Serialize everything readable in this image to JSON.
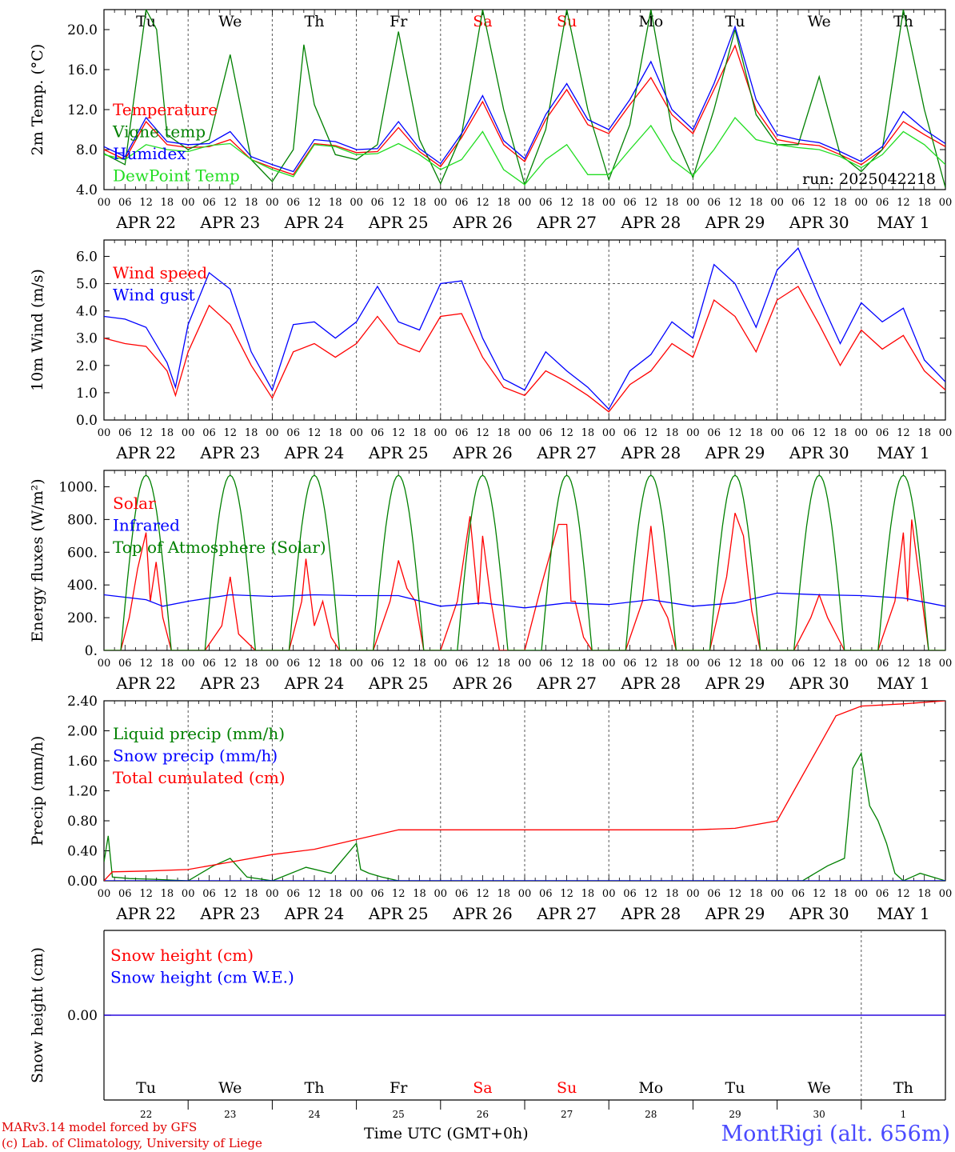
{
  "days": [
    {
      "abbr": "Tu",
      "date": "APR 22",
      "num": "22",
      "weekend": false
    },
    {
      "abbr": "We",
      "date": "APR 23",
      "num": "23",
      "weekend": false
    },
    {
      "abbr": "Th",
      "date": "APR 24",
      "num": "24",
      "weekend": false
    },
    {
      "abbr": "Fr",
      "date": "APR 25",
      "num": "25",
      "weekend": false
    },
    {
      "abbr": "Sa",
      "date": "APR 26",
      "num": "26",
      "weekend": true
    },
    {
      "abbr": "Su",
      "date": "APR 27",
      "num": "27",
      "weekend": true
    },
    {
      "abbr": "Mo",
      "date": "APR 28",
      "num": "28",
      "weekend": false
    },
    {
      "abbr": "Tu",
      "date": "APR 29",
      "num": "29",
      "weekend": false
    },
    {
      "abbr": "We",
      "date": "APR 30",
      "num": "30",
      "weekend": false
    },
    {
      "abbr": "Th",
      "date": "MAY  1",
      "num": "1",
      "weekend": false
    }
  ],
  "hour_ticks": [
    "00",
    "06",
    "12",
    "18"
  ],
  "colors": {
    "red": "#ff0000",
    "green": "#008000",
    "blue": "#0000ff",
    "lightgreen": "#22dd22",
    "weekend": "#ff0000"
  },
  "run_label": "run: 2025042218",
  "footer": {
    "model": "MARv3.14 model forced by GFS",
    "lab": "(c) Lab. of Climatology, University of Liege",
    "time_label": "Time UTC (GMT+0h)",
    "site": "MontRigi (alt. 656m)"
  },
  "chart_data": [
    {
      "type": "line",
      "ylabel": "2m Temp. (°C)",
      "ylim": [
        4,
        22
      ],
      "ytick_values": [
        4,
        8,
        12,
        16,
        20
      ],
      "ytick_labels": [
        "4.0",
        "8.0",
        "12.0",
        "16.0",
        "20.0"
      ],
      "legend": "top-left",
      "series": [
        {
          "name": "Temperature",
          "color": "red",
          "x": [
            0,
            0.25,
            0.5,
            0.75,
            1,
            1.25,
            1.5,
            1.75,
            2,
            2.25,
            2.5,
            2.75,
            3,
            3.25,
            3.5,
            3.75,
            4,
            4.25,
            4.5,
            4.75,
            5,
            5.25,
            5.5,
            5.75,
            6,
            6.25,
            6.5,
            6.75,
            7,
            7.25,
            7.5,
            7.75,
            8,
            8.25,
            8.5,
            8.75,
            9,
            9.25,
            9.5,
            9.75,
            10
          ],
          "y": [
            8.0,
            7.0,
            10.8,
            8.5,
            8.2,
            8.3,
            9.0,
            7.0,
            6.2,
            5.5,
            8.6,
            8.4,
            7.7,
            7.8,
            10.2,
            7.8,
            6.3,
            9.2,
            12.8,
            8.5,
            6.8,
            11.0,
            14.0,
            10.5,
            9.6,
            12.5,
            15.2,
            11.5,
            9.6,
            14.0,
            18.4,
            12.0,
            9.0,
            8.6,
            8.4,
            7.5,
            6.5,
            8.0,
            10.8,
            9.5,
            8.3
          ]
        },
        {
          "name": "Vigne temp",
          "color": "green",
          "x": [
            0,
            0.25,
            0.5,
            0.625,
            0.75,
            1,
            1.25,
            1.5,
            1.75,
            2,
            2.25,
            2.375,
            2.5,
            2.75,
            3,
            3.25,
            3.5,
            3.75,
            4,
            4.25,
            4.5,
            4.75,
            5,
            5.25,
            5.5,
            5.75,
            6,
            6.25,
            6.5,
            6.75,
            7,
            7.25,
            7.5,
            7.75,
            8,
            8.25,
            8.5,
            8.75,
            9,
            9.25,
            9.5,
            9.75,
            10
          ],
          "y": [
            7.6,
            6.5,
            22.0,
            20.0,
            9.5,
            8.0,
            9.0,
            17.5,
            7.0,
            4.8,
            8.0,
            18.5,
            12.5,
            7.5,
            7.0,
            8.5,
            19.8,
            9.0,
            4.6,
            9.5,
            22.0,
            12.0,
            4.5,
            10.0,
            22.0,
            12.0,
            5.0,
            10.5,
            22.0,
            10.0,
            5.2,
            12.0,
            20.0,
            11.5,
            8.5,
            8.5,
            15.3,
            7.5,
            5.8,
            8.0,
            22.0,
            12.0,
            4.2
          ]
        },
        {
          "name": "Humidex",
          "color": "blue",
          "x": [
            0,
            0.25,
            0.5,
            0.75,
            1,
            1.25,
            1.5,
            1.75,
            2,
            2.25,
            2.5,
            2.75,
            3,
            3.25,
            3.5,
            3.75,
            4,
            4.25,
            4.5,
            4.75,
            5,
            5.25,
            5.5,
            5.75,
            6,
            6.25,
            6.5,
            6.75,
            7,
            7.25,
            7.5,
            7.75,
            8,
            8.25,
            8.5,
            8.75,
            9,
            9.25,
            9.5,
            9.75,
            10
          ],
          "y": [
            8.3,
            7.3,
            11.2,
            8.8,
            8.5,
            8.6,
            9.8,
            7.3,
            6.5,
            5.8,
            9.0,
            8.8,
            8.0,
            8.1,
            10.8,
            8.1,
            6.6,
            9.6,
            13.4,
            8.9,
            7.1,
            11.5,
            14.6,
            11.0,
            10.0,
            13.0,
            16.8,
            12.0,
            10.0,
            14.6,
            20.3,
            13.0,
            9.5,
            9.0,
            8.7,
            7.8,
            6.8,
            8.3,
            11.8,
            10.0,
            8.6
          ]
        },
        {
          "name": "DewPoint Temp",
          "color": "lightgreen",
          "x": [
            0,
            0.25,
            0.5,
            0.75,
            1,
            1.25,
            1.5,
            1.75,
            2,
            2.25,
            2.5,
            2.75,
            3,
            3.25,
            3.5,
            3.75,
            4,
            4.25,
            4.5,
            4.75,
            5,
            5.25,
            5.5,
            5.75,
            6,
            6.25,
            6.5,
            6.75,
            7,
            7.25,
            7.5,
            7.75,
            8,
            8.25,
            8.5,
            8.75,
            9,
            9.25,
            9.5,
            9.75,
            10
          ],
          "y": [
            7.5,
            7.0,
            8.5,
            8.0,
            7.8,
            8.4,
            8.6,
            7.0,
            6.0,
            5.3,
            8.5,
            8.3,
            7.5,
            7.6,
            8.6,
            7.5,
            6.0,
            7.0,
            9.8,
            6.0,
            4.5,
            7.0,
            8.5,
            5.5,
            5.5,
            8.0,
            10.4,
            7.0,
            5.4,
            8.0,
            11.2,
            9.0,
            8.5,
            8.2,
            8.0,
            7.3,
            6.2,
            7.5,
            9.8,
            8.5,
            6.5
          ]
        }
      ]
    },
    {
      "type": "line",
      "ylabel": "10m Wind (m/s)",
      "ylim": [
        0,
        6.6
      ],
      "ytick_values": [
        0,
        1,
        2,
        3,
        4,
        5,
        6
      ],
      "ytick_labels": [
        "0.0",
        "1.0",
        "2.0",
        "3.0",
        "4.0",
        "5.0",
        "6.0"
      ],
      "reference_line": 5.0,
      "legend": "top-left",
      "series": [
        {
          "name": "Wind speed",
          "color": "red",
          "x": [
            0,
            0.25,
            0.5,
            0.75,
            0.85,
            1,
            1.25,
            1.5,
            1.75,
            2,
            2.25,
            2.5,
            2.75,
            3,
            3.25,
            3.5,
            3.75,
            4,
            4.25,
            4.5,
            4.75,
            5,
            5.25,
            5.5,
            5.75,
            6,
            6.25,
            6.5,
            6.75,
            7,
            7.25,
            7.5,
            7.75,
            8,
            8.25,
            8.5,
            8.75,
            9,
            9.25,
            9.5,
            9.75,
            10
          ],
          "y": [
            3.0,
            2.8,
            2.7,
            1.8,
            0.9,
            2.5,
            4.2,
            3.5,
            2.0,
            0.8,
            2.5,
            2.8,
            2.3,
            2.8,
            3.8,
            2.8,
            2.5,
            3.8,
            3.9,
            2.3,
            1.2,
            0.9,
            1.8,
            1.4,
            0.9,
            0.3,
            1.3,
            1.8,
            2.8,
            2.3,
            4.4,
            3.8,
            2.5,
            4.4,
            4.9,
            3.5,
            2.0,
            3.3,
            2.6,
            3.1,
            1.8,
            1.1
          ]
        },
        {
          "name": "Wind gust",
          "color": "blue",
          "x": [
            0,
            0.25,
            0.5,
            0.75,
            0.85,
            1,
            1.25,
            1.5,
            1.75,
            2,
            2.25,
            2.5,
            2.75,
            3,
            3.25,
            3.5,
            3.75,
            4,
            4.25,
            4.5,
            4.75,
            5,
            5.25,
            5.5,
            5.75,
            6,
            6.25,
            6.5,
            6.75,
            7,
            7.25,
            7.5,
            7.75,
            8,
            8.25,
            8.5,
            8.75,
            9,
            9.25,
            9.5,
            9.75,
            10
          ],
          "y": [
            3.8,
            3.7,
            3.4,
            2.1,
            1.2,
            3.5,
            5.4,
            4.8,
            2.5,
            1.1,
            3.5,
            3.6,
            3.0,
            3.6,
            4.9,
            3.6,
            3.3,
            5.0,
            5.1,
            3.0,
            1.5,
            1.1,
            2.5,
            1.8,
            1.2,
            0.4,
            1.8,
            2.4,
            3.6,
            3.0,
            5.7,
            5.0,
            3.4,
            5.5,
            6.3,
            4.5,
            2.8,
            4.3,
            3.6,
            4.1,
            2.2,
            1.4
          ]
        }
      ]
    },
    {
      "type": "line",
      "ylabel": "Energy fluxes (W/m²)",
      "ylim": [
        0,
        1100
      ],
      "ytick_values": [
        0,
        200,
        400,
        600,
        800,
        1000
      ],
      "ytick_labels": [
        "0.",
        "200.",
        "400.",
        "600.",
        "800.",
        "1000."
      ],
      "legend": "top-left",
      "series": [
        {
          "name": "Solar",
          "color": "red",
          "x": [
            0,
            0.2,
            0.3,
            0.4,
            0.5,
            0.55,
            0.62,
            0.7,
            0.8,
            1,
            1.2,
            1.4,
            1.5,
            1.6,
            1.8,
            2,
            2.2,
            2.35,
            2.4,
            2.5,
            2.6,
            2.7,
            2.8,
            3,
            3.2,
            3.4,
            3.5,
            3.6,
            3.7,
            3.8,
            4,
            4.2,
            4.35,
            4.45,
            4.5,
            4.6,
            4.7,
            4.8,
            5,
            5.2,
            5.4,
            5.5,
            5.55,
            5.6,
            5.7,
            5.8,
            6,
            6.2,
            6.4,
            6.5,
            6.6,
            6.7,
            6.8,
            7,
            7.2,
            7.4,
            7.5,
            7.6,
            7.7,
            7.8,
            8,
            8.2,
            8.4,
            8.5,
            8.6,
            8.7,
            8.8,
            9,
            9.2,
            9.4,
            9.5,
            9.55,
            9.6,
            9.7,
            9.8,
            10
          ],
          "y": [
            0,
            0,
            200,
            500,
            720,
            300,
            540,
            200,
            0,
            0,
            0,
            150,
            450,
            100,
            0,
            0,
            0,
            300,
            560,
            150,
            300,
            80,
            0,
            0,
            0,
            300,
            550,
            380,
            300,
            0,
            0,
            300,
            820,
            280,
            700,
            300,
            0,
            0,
            0,
            400,
            770,
            770,
            300,
            300,
            80,
            0,
            0,
            0,
            300,
            760,
            300,
            200,
            0,
            0,
            0,
            450,
            840,
            700,
            240,
            0,
            0,
            0,
            200,
            340,
            200,
            100,
            0,
            0,
            0,
            300,
            720,
            300,
            800,
            400,
            0,
            0
          ]
        },
        {
          "name": "Infrared",
          "color": "blue",
          "x": [
            0,
            0.5,
            0.7,
            1,
            1.5,
            2,
            2.5,
            3,
            3.5,
            4,
            4.5,
            5,
            5.5,
            6,
            6.5,
            7,
            7.5,
            8,
            8.5,
            9,
            9.5,
            10
          ],
          "y": [
            340,
            310,
            270,
            300,
            340,
            330,
            340,
            335,
            335,
            270,
            290,
            260,
            290,
            280,
            310,
            270,
            290,
            350,
            340,
            335,
            320,
            270
          ]
        },
        {
          "name": "Top of Atmosphere (Solar)",
          "color": "green",
          "daily_peak": 1070,
          "day_start": 0.2,
          "day_end": 0.8
        }
      ]
    },
    {
      "type": "line",
      "ylabel": "Precip (mm/h)",
      "ylim": [
        0,
        2.4
      ],
      "ytick_values": [
        0,
        0.4,
        0.8,
        1.2,
        1.6,
        2.0,
        2.4
      ],
      "ytick_labels": [
        "0.00",
        "0.40",
        "0.80",
        "1.20",
        "1.60",
        "2.00",
        "2.40"
      ],
      "legend": "top-left",
      "series": [
        {
          "name": "Liquid precip (mm/h)",
          "color": "green",
          "x": [
            0,
            0.05,
            0.1,
            0.3,
            0.6,
            1,
            1.3,
            1.5,
            1.7,
            2,
            2.4,
            2.7,
            3,
            3.05,
            3.15,
            3.3,
            3.5,
            8.3,
            8.6,
            8.8,
            8.9,
            9,
            9.1,
            9.2,
            9.3,
            9.4,
            9.5,
            9.7,
            10
          ],
          "y": [
            0.25,
            0.6,
            0.05,
            0.03,
            0.02,
            0,
            0.2,
            0.3,
            0.05,
            0,
            0.18,
            0.1,
            0.5,
            0.15,
            0.1,
            0.05,
            0,
            0,
            0.2,
            0.3,
            1.5,
            1.7,
            1.0,
            0.8,
            0.5,
            0.1,
            0,
            0.1,
            0
          ]
        },
        {
          "name": "Snow precip (mm/h)",
          "color": "blue",
          "x": [
            0,
            10
          ],
          "y": [
            0,
            0
          ]
        },
        {
          "name": "Total cumulated (cm)",
          "color": "red",
          "x": [
            0,
            0.1,
            0.5,
            1,
            1.5,
            2,
            2.5,
            3,
            3.5,
            4,
            5,
            6,
            7,
            7.5,
            8,
            8.2,
            8.5,
            8.7,
            9,
            9.5,
            10
          ],
          "y": [
            0,
            0.12,
            0.13,
            0.15,
            0.25,
            0.35,
            0.42,
            0.55,
            0.68,
            0.68,
            0.68,
            0.68,
            0.68,
            0.7,
            0.8,
            1.2,
            1.8,
            2.2,
            2.33,
            2.36,
            2.4
          ]
        }
      ]
    },
    {
      "type": "line",
      "ylabel": "Snow height (cm)",
      "ylim": [
        -1,
        1
      ],
      "ytick_values": [
        0
      ],
      "ytick_labels": [
        "0.00"
      ],
      "legend": "top-left",
      "series": [
        {
          "name": "Snow height (cm)",
          "color": "red",
          "x": [
            0,
            10
          ],
          "y": [
            0,
            0
          ]
        },
        {
          "name": "Snow height (cm W.E.)",
          "color": "blue",
          "x": [
            0,
            10
          ],
          "y": [
            0,
            0
          ]
        }
      ]
    }
  ]
}
